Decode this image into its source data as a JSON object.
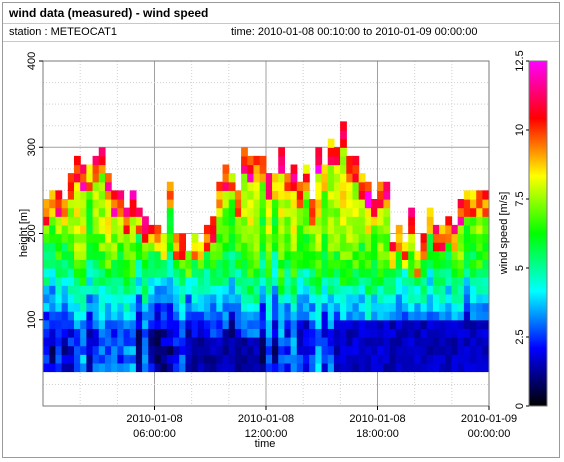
{
  "header": {
    "title": "wind data (measured) - wind speed",
    "station_text": "station : METEOCAT1",
    "time_text": "time: 2010-01-08 00:10:00 to 2010-01-09 00:00:00"
  },
  "chart_data": {
    "type": "heatmap",
    "title": "wind data (measured) - wind speed",
    "xlabel": "time",
    "ylabel": "height [m]",
    "colorbar_label": "wind speed [m/s]",
    "x_range": [
      "2010-01-08 00:10:00",
      "2010-01-09 00:00:00"
    ],
    "xlim_hours": [
      0,
      24
    ],
    "ylim": [
      0,
      400
    ],
    "zlim": [
      0,
      12.5
    ],
    "x_ticks": [
      {
        "hour": 6,
        "line1": "2010-01-08",
        "line2": "06:00:00"
      },
      {
        "hour": 12,
        "line1": "2010-01-08",
        "line2": "12:00:00"
      },
      {
        "hour": 18,
        "line1": "2010-01-08",
        "line2": "18:00:00"
      },
      {
        "hour": 24,
        "line1": "2010-01-09",
        "line2": "00:00:00"
      }
    ],
    "y_ticks": [
      100,
      200,
      300,
      400
    ],
    "colorbar_ticks": [
      "0",
      "2.5",
      "5",
      "7.5",
      "10",
      "12.5"
    ],
    "colormap": [
      "#000000",
      "#0000ff",
      "#00ffff",
      "#00ff00",
      "#ffff00",
      "#ff0000",
      "#ff00ff"
    ],
    "grid": true,
    "cell_height_m": 10,
    "min_height_m": 40,
    "time_step_hours": 0.333,
    "top_height_profile": [
      [
        0,
        230
      ],
      [
        1,
        220
      ],
      [
        2,
        270
      ],
      [
        3,
        290
      ],
      [
        4,
        260
      ],
      [
        5,
        220
      ],
      [
        6,
        210
      ],
      [
        7,
        230
      ],
      [
        8,
        200
      ],
      [
        9,
        210
      ],
      [
        10,
        270
      ],
      [
        11,
        280
      ],
      [
        12,
        260
      ],
      [
        13,
        270
      ],
      [
        14,
        250
      ],
      [
        15,
        280
      ],
      [
        16,
        320
      ],
      [
        17,
        290
      ],
      [
        18,
        260
      ],
      [
        19,
        210
      ],
      [
        20,
        200
      ],
      [
        21,
        200
      ],
      [
        22,
        210
      ],
      [
        23,
        220
      ],
      [
        24,
        230
      ]
    ],
    "speed_profile": [
      {
        "height": 40,
        "speed": 2.4
      },
      {
        "height": 80,
        "speed": 2.2
      },
      {
        "height": 120,
        "speed": 4.0
      },
      {
        "height": 160,
        "speed": 6.0
      },
      {
        "height": 200,
        "speed": 7.2
      },
      {
        "height": 240,
        "speed": 7.5
      },
      {
        "height": 300,
        "speed": 6.5
      },
      {
        "height": 340,
        "speed": 6.0
      }
    ],
    "low_speed_periods": [
      {
        "from_hour": 7.5,
        "to_hour": 11.5,
        "max_height": 70,
        "speed": 1.0
      },
      {
        "from_hour": 15.5,
        "to_hour": 24,
        "max_height": 90,
        "speed": 1.2
      }
    ]
  }
}
